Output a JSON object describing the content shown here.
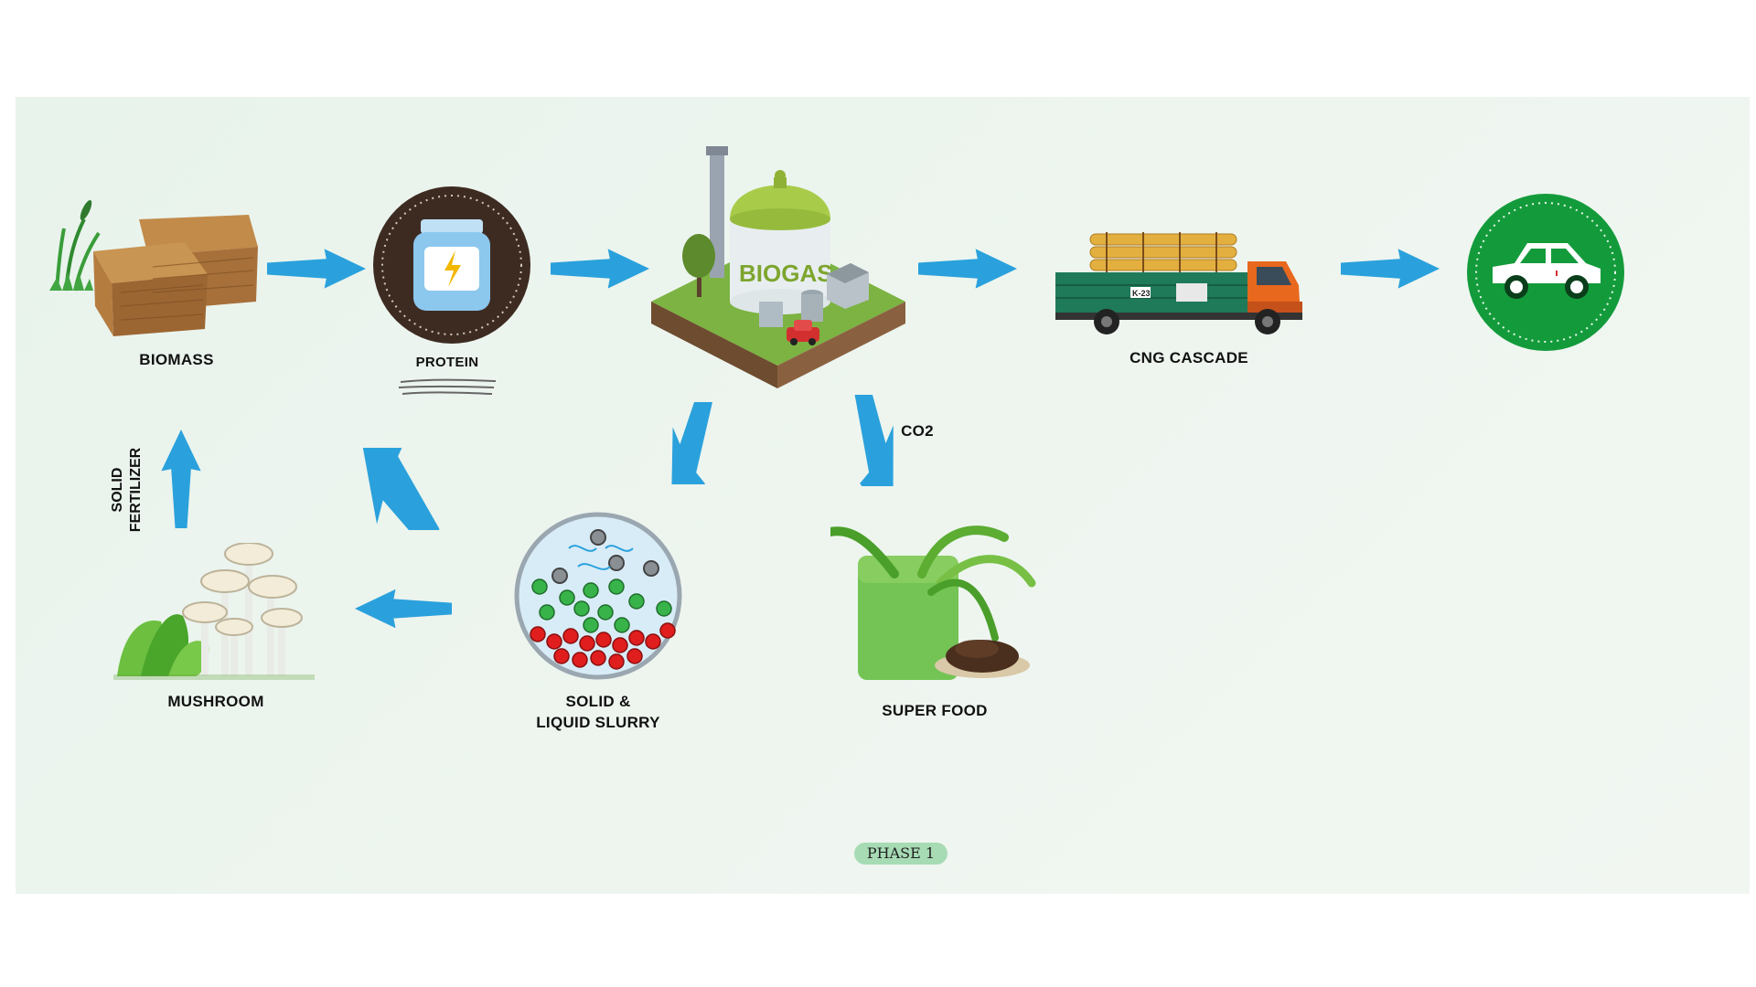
{
  "nodes": {
    "biomass": "BIOMASS",
    "protein": "PROTEIN",
    "biogas": "BIOGAS",
    "cng_cascade": "CNG CASCADE",
    "co2": "CO2",
    "slurry_line1": "SOLID &",
    "slurry_line2": "LIQUID SLURRY",
    "super_food": "SUPER FOOD",
    "mushroom": "MUSHROOM",
    "fertilizer_line1": "SOLID",
    "fertilizer_line2": "FERTILIZER"
  },
  "badge": "PHASE 1",
  "truck_plate": "K-23",
  "colors": {
    "arrow": "#2aa1dc",
    "panel": "#eaf4ed",
    "car_badge": "#139b3b",
    "protein_badge": "#3d2b22",
    "badge": "#a6dbb4"
  },
  "icons": [
    "biomass-bales-icon",
    "protein-jar-icon",
    "biogas-plant-icon",
    "cng-truck-icon",
    "car-icon",
    "slurry-circle-icon",
    "super-food-icon",
    "mushroom-icon"
  ]
}
